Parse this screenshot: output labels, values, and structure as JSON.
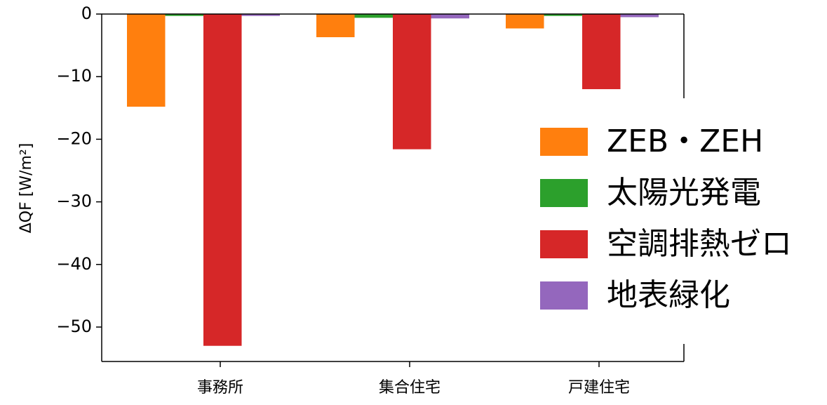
{
  "chart_data": {
    "type": "bar",
    "y_label": "ΔQF [W/m²]",
    "categories": [
      "事務所",
      "集合住宅",
      "戸建住宅"
    ],
    "series": [
      {
        "name": "ZEB・ZEH",
        "color": "#ff7f0e",
        "values": [
          -14.8,
          -3.7,
          -2.3
        ]
      },
      {
        "name": "太陽光発電",
        "color": "#2ca02c",
        "values": [
          -0.3,
          -0.6,
          -0.3
        ]
      },
      {
        "name": "空調排熱ゼロ",
        "color": "#d62728",
        "values": [
          -53.0,
          -21.6,
          -12.0
        ]
      },
      {
        "name": "地表緑化",
        "color": "#9467bd",
        "values": [
          -0.3,
          -0.7,
          -0.5
        ]
      }
    ],
    "ylim": [
      -55.5,
      0
    ],
    "yticks": [
      {
        "value": -50,
        "label": "−50"
      },
      {
        "value": -40,
        "label": "−40"
      },
      {
        "value": -30,
        "label": "−30"
      },
      {
        "value": -20,
        "label": "−20"
      },
      {
        "value": -10,
        "label": "−10"
      },
      0
    ]
  }
}
